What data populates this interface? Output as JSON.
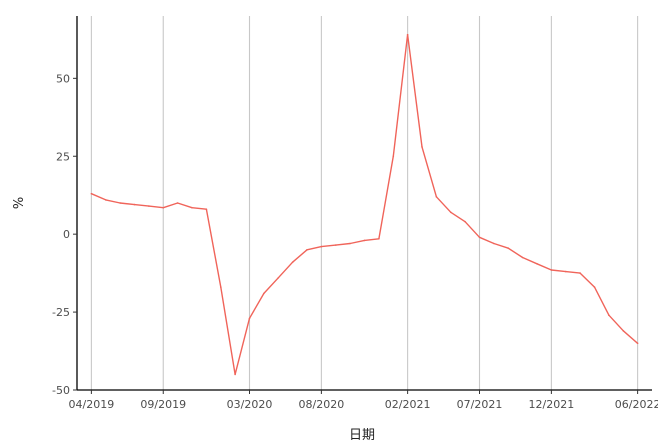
{
  "chart_data": {
    "type": "line",
    "title": "",
    "xlabel": "日期",
    "ylabel": "%",
    "x_ticks": [
      "04/2019",
      "09/2019",
      "03/2020",
      "08/2020",
      "02/2021",
      "07/2021",
      "12/2021",
      "06/2022"
    ],
    "y_ticks": [
      -50,
      -25,
      0,
      25,
      50
    ],
    "xlim": [
      "2019-03",
      "2022-07"
    ],
    "ylim": [
      -50,
      70
    ],
    "grid": {
      "vertical_major": true,
      "horizontal": false
    },
    "series": [
      {
        "color": "#f0645a",
        "points": [
          [
            "2019-04",
            13
          ],
          [
            "2019-05",
            11
          ],
          [
            "2019-06",
            10
          ],
          [
            "2019-07",
            9.5
          ],
          [
            "2019-08",
            9
          ],
          [
            "2019-09",
            8.5
          ],
          [
            "2019-10",
            10
          ],
          [
            "2019-11",
            8.5
          ],
          [
            "2019-12",
            8
          ],
          [
            "2020-01",
            -17
          ],
          [
            "2020-02",
            -45
          ],
          [
            "2020-03",
            -27
          ],
          [
            "2020-04",
            -19
          ],
          [
            "2020-05",
            -14
          ],
          [
            "2020-06",
            -9
          ],
          [
            "2020-07",
            -5
          ],
          [
            "2020-08",
            -4
          ],
          [
            "2020-09",
            -3.5
          ],
          [
            "2020-10",
            -3
          ],
          [
            "2020-11",
            -2
          ],
          [
            "2020-12",
            -1.5
          ],
          [
            "2021-01",
            25
          ],
          [
            "2021-02",
            64
          ],
          [
            "2021-03",
            28
          ],
          [
            "2021-04",
            12
          ],
          [
            "2021-05",
            7
          ],
          [
            "2021-06",
            4
          ],
          [
            "2021-07",
            -1
          ],
          [
            "2021-08",
            -3
          ],
          [
            "2021-09",
            -4.5
          ],
          [
            "2021-10",
            -7.5
          ],
          [
            "2021-11",
            -9.5
          ],
          [
            "2021-12",
            -11.5
          ],
          [
            "2022-01",
            -12
          ],
          [
            "2022-02",
            -12.5
          ],
          [
            "2022-03",
            -17
          ],
          [
            "2022-04",
            -26
          ],
          [
            "2022-05",
            -31
          ],
          [
            "2022-06",
            -35
          ]
        ]
      }
    ]
  }
}
